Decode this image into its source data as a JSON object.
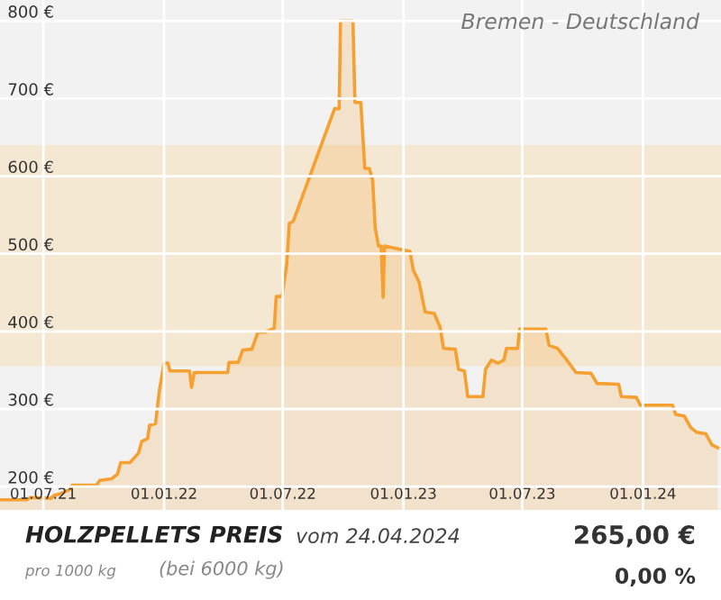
{
  "chart_data": {
    "type": "area",
    "title": "HOLZPELLETS PREIS",
    "subtitle": "vom 24.04.2024",
    "annotations": [
      "Bremen - Deutschland",
      "pro 1000 kg",
      "(bei 6000 kg)",
      "265,00 €",
      "0,00 %"
    ],
    "series": [
      {
        "color": "#f5a030",
        "x": [
          "2021-04-26",
          "2021-06-06",
          "2021-06-11",
          "2021-07-13",
          "2021-07-18",
          "2021-07-27",
          "2021-08-10",
          "2021-08-14",
          "2021-09-20",
          "2021-09-25",
          "2021-10-13",
          "2021-10-22",
          "2021-10-27",
          "2021-11-10",
          "2021-11-23",
          "2021-11-28",
          "2021-12-07",
          "2021-12-10",
          "2021-12-19",
          "2021-12-25",
          "2022-01-01",
          "2022-01-07",
          "2022-01-10",
          "2022-02-09",
          "2022-02-12",
          "2022-02-16",
          "2022-04-08",
          "2022-04-10",
          "2022-04-24",
          "2022-05-01",
          "2022-05-15",
          "2022-05-24",
          "2022-06-04",
          "2022-06-18",
          "2022-06-21",
          "2022-06-30",
          "2022-07-07",
          "2022-07-11",
          "2022-07-17",
          "2022-09-18",
          "2022-09-25",
          "2022-09-27",
          "2022-10-16",
          "2022-10-19",
          "2022-10-28",
          "2022-11-03",
          "2022-11-10",
          "2022-11-15",
          "2022-11-19",
          "2022-11-24",
          "2022-11-28",
          "2022-12-01",
          "2022-12-03",
          "2023-01-11",
          "2023-01-16",
          "2023-01-25",
          "2023-02-03",
          "2023-02-17",
          "2023-02-26",
          "2023-03-03",
          "2023-03-21",
          "2023-03-26",
          "2023-04-04",
          "2023-04-09",
          "2023-05-02",
          "2023-05-06",
          "2023-05-15",
          "2023-05-25",
          "2023-06-03",
          "2023-06-07",
          "2023-06-24",
          "2023-06-27",
          "2023-08-06",
          "2023-08-11",
          "2023-08-24",
          "2023-09-07",
          "2023-09-21",
          "2023-10-14",
          "2023-10-23",
          "2023-11-25",
          "2023-11-29",
          "2023-12-22",
          "2023-12-28",
          "2024-02-15",
          "2024-02-20",
          "2024-03-04",
          "2024-03-14",
          "2024-03-23",
          "2024-04-06",
          "2024-04-15",
          "2024-04-24"
        ],
        "values": [
          183,
          183,
          186,
          185,
          189,
          191,
          196,
          202,
          202,
          208,
          210,
          216,
          231,
          231,
          243,
          258,
          262,
          279,
          281,
          324,
          359,
          359,
          349,
          349,
          328,
          347,
          347,
          360,
          360,
          376,
          377,
          399,
          399,
          404,
          445,
          445,
          486,
          539,
          542,
          687,
          687,
          800,
          800,
          695,
          695,
          610,
          610,
          595,
          533,
          510,
          510,
          444,
          510,
          503,
          479,
          463,
          425,
          423,
          405,
          378,
          377,
          351,
          349,
          316,
          316,
          351,
          363,
          359,
          363,
          378,
          378,
          403,
          403,
          382,
          378,
          363,
          347,
          346,
          333,
          332,
          316,
          315,
          305,
          305,
          293,
          291,
          276,
          270,
          268,
          254,
          250
        ]
      }
    ],
    "xlim": [
      "2021-04-26",
      "2024-04-29"
    ],
    "xticks": [
      {
        "value": "2021-07-01",
        "label": "01.07.21"
      },
      {
        "value": "2022-01-01",
        "label": "01.01.22"
      },
      {
        "value": "2022-07-01",
        "label": "01.07.22"
      },
      {
        "value": "2023-01-01",
        "label": "01.01.23"
      },
      {
        "value": "2023-07-01",
        "label": "01.07.23"
      },
      {
        "value": "2024-01-01",
        "label": "01.01.24"
      }
    ],
    "ylim": [
      170,
      827
    ],
    "yticks": [
      {
        "value": 200,
        "label": "200 €"
      },
      {
        "value": 300,
        "label": "300 €"
      },
      {
        "value": 400,
        "label": "400 €"
      },
      {
        "value": 500,
        "label": "500 €"
      },
      {
        "value": 600,
        "label": "600 €"
      },
      {
        "value": 700,
        "label": "700 €"
      },
      {
        "value": 800,
        "label": "800 €"
      }
    ],
    "bands": [
      {
        "axis": "y",
        "from": 355,
        "to": 640,
        "color": "#f5e8d2"
      }
    ],
    "grid": true
  }
}
